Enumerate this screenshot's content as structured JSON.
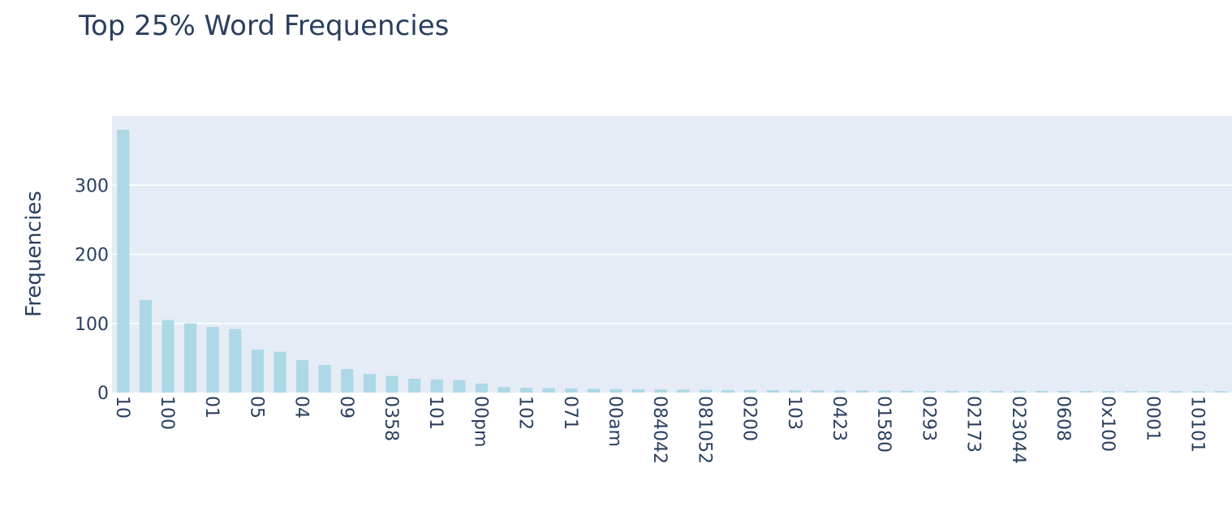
{
  "colors": {
    "plot_background": "#e5ecf6",
    "grid": "#ffffff",
    "bar": "#add8e6",
    "text": "#2a3f5f"
  },
  "chart_data": {
    "type": "bar",
    "title": "Top 25% Word Frequencies",
    "xlabel": "",
    "ylabel": "Frequencies",
    "ylim": [
      0,
      400
    ],
    "yticks": [
      0,
      100,
      200,
      300
    ],
    "grid": true,
    "categories": [
      "10",
      "",
      "100",
      "",
      "01",
      "",
      "05",
      "",
      "04",
      "",
      "09",
      "",
      "0358",
      "",
      "101",
      "",
      "00pm",
      "",
      "102",
      "",
      "071",
      "",
      "00am",
      "",
      "084042",
      "",
      "081052",
      "",
      "0200",
      "",
      "103",
      "",
      "0423",
      "",
      "01580",
      "",
      "0293",
      "",
      "02173",
      "",
      "023044",
      "",
      "0608",
      "",
      "0x100",
      "",
      "0001",
      "",
      "10101",
      ""
    ],
    "values": [
      380,
      134,
      105,
      100,
      95,
      92,
      62,
      59,
      47,
      40,
      34,
      27,
      24,
      20,
      19,
      18,
      13,
      8,
      7,
      6.5,
      6,
      5.5,
      5,
      4.8,
      4.5,
      4.2,
      4,
      3.8,
      3.6,
      3.4,
      3.2,
      3.1,
      3,
      2.9,
      2.8,
      2.7,
      2.6,
      2.5,
      2.5,
      2.4,
      2.4,
      2.3,
      2.3,
      2.2,
      2.2,
      2.1,
      2.1,
      2,
      2,
      2
    ]
  }
}
